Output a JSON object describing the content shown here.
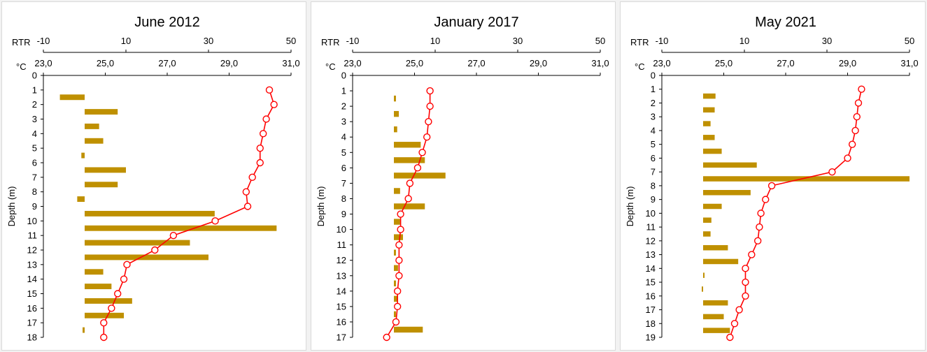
{
  "chart_data": [
    {
      "type": "bar",
      "title": "June 2012",
      "ylabel": "Depth (m)",
      "top_axis_label": "RTR",
      "temp_axis_label": "°C",
      "rtr_ticks": [
        "-10",
        "10",
        "30",
        "50"
      ],
      "temp_ticks": [
        "23,0",
        "25,0",
        "27,0",
        "29,0",
        "31,0"
      ],
      "rtr_range": [
        -10,
        50
      ],
      "temp_range": [
        23,
        31
      ],
      "depth_range": [
        0,
        18
      ],
      "depth_ticks": [
        "0",
        "1",
        "2",
        "3",
        "4",
        "5",
        "6",
        "7",
        "8",
        "9",
        "10",
        "11",
        "12",
        "13",
        "14",
        "15",
        "16",
        "17",
        "18"
      ],
      "bar_color": "#bf9000",
      "line_color": "#ff0000",
      "series": [
        {
          "name": "RTR",
          "depth_mid": [
            1.5,
            2.5,
            3.5,
            4.5,
            5.5,
            6.5,
            7.5,
            8.5,
            9.5,
            10.5,
            11.5,
            12.5,
            13.5,
            14.5,
            15.5,
            16.5,
            17.5
          ],
          "values": [
            -6,
            8,
            3.5,
            4.5,
            -0.8,
            10,
            8,
            -1.8,
            31.5,
            46.5,
            25.5,
            30,
            4.5,
            6.5,
            11.5,
            9.5,
            -0.5
          ]
        },
        {
          "name": "Temperature",
          "depth": [
            1,
            2,
            3,
            4,
            5,
            6,
            7,
            8,
            9,
            10,
            11,
            12,
            13,
            14,
            15,
            16,
            17,
            18
          ],
          "values": [
            30.3,
            30.45,
            30.2,
            30.1,
            30.0,
            30.0,
            29.75,
            29.55,
            29.6,
            28.55,
            27.2,
            26.6,
            25.7,
            25.6,
            25.4,
            25.2,
            24.95,
            24.95
          ]
        }
      ]
    },
    {
      "type": "bar",
      "title": "January 2017",
      "ylabel": "Depth (m)",
      "top_axis_label": "RTR",
      "temp_axis_label": "°C",
      "rtr_ticks": [
        "-10",
        "10",
        "30",
        "50"
      ],
      "temp_ticks": [
        "23,0",
        "25,0",
        "27,0",
        "29,0",
        "31,0"
      ],
      "rtr_range": [
        -10,
        50
      ],
      "temp_range": [
        23,
        31
      ],
      "depth_range": [
        0,
        17
      ],
      "depth_ticks": [
        "0",
        "1",
        "2",
        "3",
        "4",
        "5",
        "6",
        "7",
        "8",
        "9",
        "10",
        "11",
        "12",
        "13",
        "14",
        "15",
        "16",
        "17"
      ],
      "bar_color": "#bf9000",
      "line_color": "#ff0000",
      "series": [
        {
          "name": "RTR",
          "depth_mid": [
            1.5,
            2.5,
            3.5,
            4.5,
            5.5,
            6.5,
            7.5,
            8.5,
            9.5,
            10.5,
            11.5,
            12.5,
            13.5,
            14.5,
            15.5,
            16.5
          ],
          "values": [
            0.5,
            1.2,
            0.8,
            6.5,
            7.5,
            12.5,
            1.5,
            7.5,
            1.5,
            2.2,
            0.5,
            1,
            0.5,
            1,
            0.5,
            7
          ]
        },
        {
          "name": "Temperature",
          "depth": [
            1,
            2,
            3,
            4,
            5,
            6,
            7,
            8,
            9,
            10,
            11,
            12,
            13,
            14,
            15,
            16,
            17
          ],
          "values": [
            25.5,
            25.5,
            25.45,
            25.4,
            25.25,
            25.1,
            24.85,
            24.8,
            24.55,
            24.55,
            24.5,
            24.5,
            24.5,
            24.45,
            24.45,
            24.4,
            24.1
          ]
        }
      ]
    },
    {
      "type": "bar",
      "title": "May 2021",
      "ylabel": "Depth (m)",
      "top_axis_label": "RTR",
      "temp_axis_label": "°C",
      "rtr_ticks": [
        "-10",
        "10",
        "30",
        "50"
      ],
      "temp_ticks": [
        "23,0",
        "25,0",
        "27,0",
        "29,0",
        "31,0"
      ],
      "rtr_range": [
        -10,
        50
      ],
      "temp_range": [
        23,
        31
      ],
      "depth_range": [
        0,
        19
      ],
      "depth_ticks": [
        "0",
        "1",
        "2",
        "3",
        "4",
        "5",
        "6",
        "7",
        "8",
        "9",
        "10",
        "11",
        "12",
        "13",
        "14",
        "15",
        "16",
        "17",
        "18",
        "19"
      ],
      "bar_color": "#bf9000",
      "line_color": "#ff0000",
      "series": [
        {
          "name": "RTR",
          "depth_mid": [
            1.5,
            2.5,
            3.5,
            4.5,
            5.5,
            6.5,
            7.5,
            8.5,
            9.5,
            10.5,
            11.5,
            12.5,
            13.5,
            14.5,
            15.5,
            16.5,
            17.5,
            18.5
          ],
          "values": [
            3,
            2.8,
            1.8,
            2.8,
            4.5,
            13,
            50,
            11.5,
            4.5,
            2,
            1.8,
            6,
            8.5,
            0,
            -0.3,
            6,
            5,
            6.5
          ]
        },
        {
          "name": "Temperature",
          "depth": [
            1,
            2,
            3,
            4,
            5,
            6,
            7,
            8,
            9,
            10,
            11,
            12,
            13,
            14,
            15,
            16,
            17,
            18,
            19
          ],
          "values": [
            29.45,
            29.35,
            29.3,
            29.25,
            29.15,
            29.0,
            28.5,
            26.55,
            26.35,
            26.2,
            26.15,
            26.1,
            25.9,
            25.7,
            25.7,
            25.7,
            25.5,
            25.35,
            25.2
          ]
        }
      ]
    }
  ]
}
